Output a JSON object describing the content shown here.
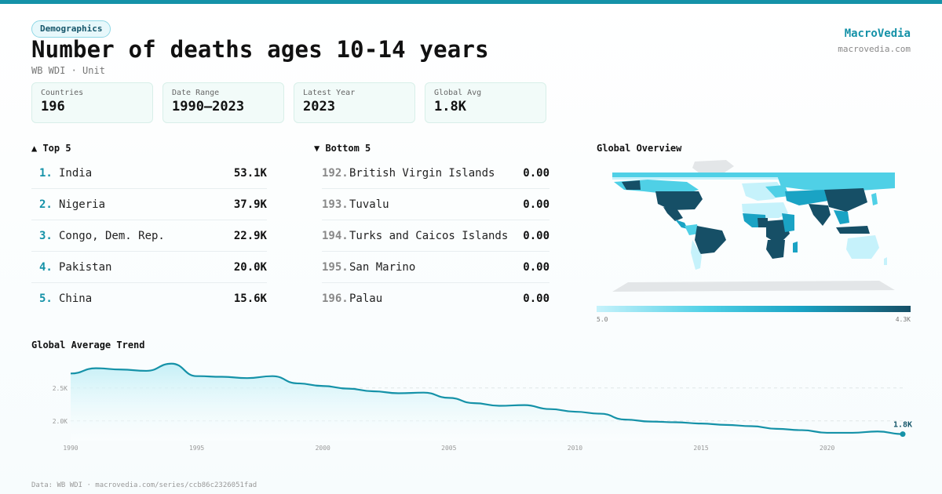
{
  "header": {
    "badge": "Demographics",
    "title": "Number of deaths ages 10-14 years",
    "subtitle": "WB WDI · Unit",
    "brand": "MacroVedia",
    "brand_url": "macrovedia.com"
  },
  "stats": [
    {
      "label": "Countries",
      "value": "196"
    },
    {
      "label": "Date Range",
      "value": "1990–2023"
    },
    {
      "label": "Latest Year",
      "value": "2023"
    },
    {
      "label": "Global Avg",
      "value": "1.8K"
    }
  ],
  "top5": {
    "heading": "▲ Top 5",
    "items": [
      {
        "rank": "1.",
        "name": "India",
        "value": "53.1K"
      },
      {
        "rank": "2.",
        "name": "Nigeria",
        "value": "37.9K"
      },
      {
        "rank": "3.",
        "name": "Congo, Dem. Rep.",
        "value": "22.9K"
      },
      {
        "rank": "4.",
        "name": "Pakistan",
        "value": "20.0K"
      },
      {
        "rank": "5.",
        "name": "China",
        "value": "15.6K"
      }
    ]
  },
  "bottom5": {
    "heading": "▼ Bottom 5",
    "items": [
      {
        "rank": "192.",
        "name": "British Virgin Islands",
        "value": "0.00"
      },
      {
        "rank": "193.",
        "name": "Tuvalu",
        "value": "0.00"
      },
      {
        "rank": "194.",
        "name": "Turks and Caicos Islands",
        "value": "0.00"
      },
      {
        "rank": "195.",
        "name": "San Marino",
        "value": "0.00"
      },
      {
        "rank": "196.",
        "name": "Palau",
        "value": "0.00"
      }
    ]
  },
  "map": {
    "heading": "Global Overview",
    "legend_min": "5.0",
    "legend_max": "4.3K",
    "colors": {
      "low": "#c6f2fb",
      "mid": "#1aa3c4",
      "high": "#164f66",
      "nodata": "#e3e6e8"
    }
  },
  "chart_data": {
    "type": "area",
    "title": "Global Average Trend",
    "x": [
      1990,
      1991,
      1992,
      1993,
      1994,
      1995,
      1996,
      1997,
      1998,
      1999,
      2000,
      2001,
      2002,
      2003,
      2004,
      2005,
      2006,
      2007,
      2008,
      2009,
      2010,
      2011,
      2012,
      2013,
      2014,
      2015,
      2016,
      2017,
      2018,
      2019,
      2020,
      2021,
      2022,
      2023
    ],
    "y": [
      2720,
      2800,
      2780,
      2760,
      2870,
      2680,
      2670,
      2650,
      2680,
      2570,
      2530,
      2490,
      2450,
      2420,
      2430,
      2350,
      2270,
      2230,
      2240,
      2180,
      2140,
      2110,
      2020,
      1990,
      1980,
      1960,
      1940,
      1920,
      1880,
      1860,
      1820,
      1820,
      1840,
      1800
    ],
    "yticks": [
      2000,
      2500
    ],
    "ytick_labels": [
      "2.0K",
      "2.5K"
    ],
    "xticks": [
      1990,
      1995,
      2000,
      2005,
      2010,
      2015,
      2020
    ],
    "ylim": [
      1700,
      2950
    ],
    "last_label": "1.8K",
    "line_color": "#1592a8"
  },
  "footer": "Data: WB WDI · macrovedia.com/series/ccb86c2326051fad"
}
